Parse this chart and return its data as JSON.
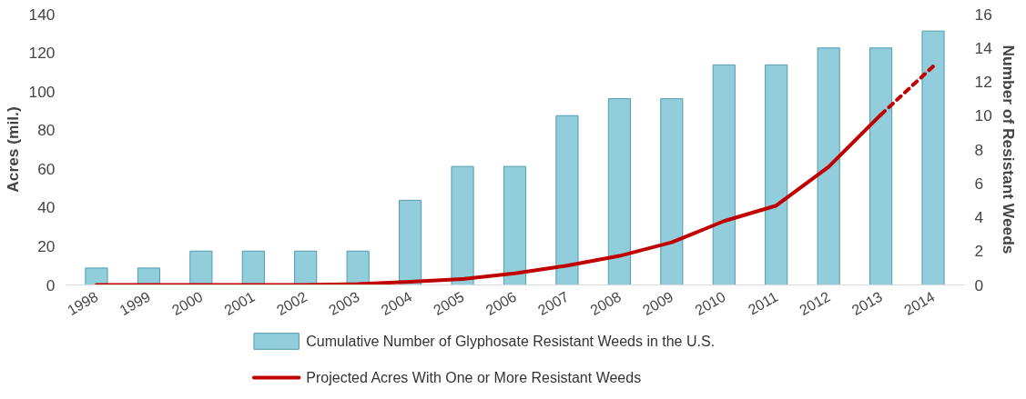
{
  "chart_data": {
    "type": "bar",
    "ylabel": "Acres (mil.)",
    "y2label": "Number of Resistant Weeds",
    "categories": [
      "1998",
      "1999",
      "2000",
      "2001",
      "2002",
      "2003",
      "2004",
      "2005",
      "2006",
      "2007",
      "2008",
      "2009",
      "2010",
      "2011",
      "2012",
      "2013",
      "2014"
    ],
    "series": [
      {
        "name": "Cumulative Number of Glyphosate Resistant Weeds in the U.S.",
        "type": "bar",
        "axis": "y2",
        "color": "#92cddc",
        "values": [
          1,
          1,
          2,
          2,
          2,
          2,
          5,
          7,
          7,
          10,
          11,
          11,
          13,
          13,
          14,
          14,
          15
        ]
      },
      {
        "name": "Projected Acres With One or More Resistant Weeds",
        "type": "line",
        "axis": "y",
        "color": "#c00000",
        "line_style": "solid",
        "values": [
          0,
          0,
          0,
          0,
          0,
          0.5,
          1.6,
          3,
          6,
          10,
          15,
          22,
          33,
          41,
          61,
          88,
          null
        ]
      },
      {
        "type": "line",
        "axis": "y",
        "color": "#c00000",
        "line_style": "dashed",
        "values": [
          null,
          null,
          null,
          null,
          null,
          null,
          null,
          null,
          null,
          null,
          null,
          null,
          null,
          null,
          null,
          88,
          113
        ]
      }
    ],
    "ylim": [
      0,
      140
    ],
    "yticks": [
      0,
      20,
      40,
      60,
      80,
      100,
      120,
      140
    ],
    "y2lim": [
      0,
      16
    ],
    "y2ticks": [
      0,
      2,
      4,
      6,
      8,
      10,
      12,
      14,
      16
    ],
    "legend": "bottom"
  }
}
